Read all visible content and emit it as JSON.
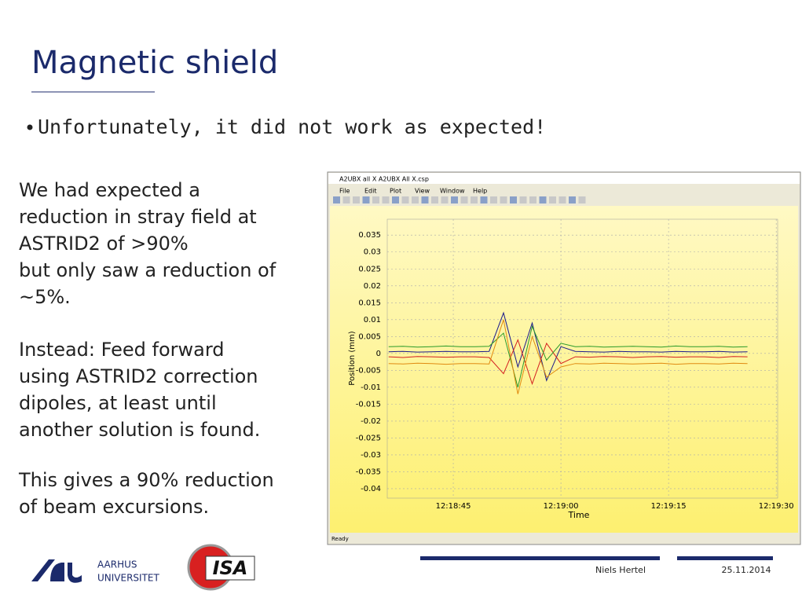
{
  "header": {
    "title": "Magnetic shield"
  },
  "bullets": [
    "Unfortunately, it did not work as expected!"
  ],
  "paragraphs": [
    {
      "lines": [
        "We had expected a",
        "reduction in stray field at",
        "ASTRID2 of >90%",
        "but only saw a reduction of",
        "~5%."
      ]
    },
    {
      "lines": [
        "Instead: Feed forward",
        "using ASTRID2 correction",
        "dipoles, at least until",
        "another solution is found."
      ]
    },
    {
      "lines": [
        "This gives a 90% reduction",
        "of beam excursions."
      ]
    }
  ],
  "window": {
    "title": "A2UBX all X   A2UBX All X.csp",
    "menu": [
      "File",
      "Edit",
      "Plot",
      "View",
      "Window",
      "Help"
    ],
    "status": "Ready"
  },
  "chart_data": {
    "type": "line",
    "xlabel": "Time",
    "ylabel": "Position (mm)",
    "xlim": [
      44315.8,
      44370.2
    ],
    "ylim": [
      -0.0428,
      0.0397
    ],
    "xticks": [
      {
        "value": 44325,
        "label": "12:18:45"
      },
      {
        "value": 44340,
        "label": "12:19:00"
      },
      {
        "value": 44355,
        "label": "12:19:15"
      },
      {
        "value": 44370,
        "label": "12:19:30"
      }
    ],
    "yticks": [
      0.035,
      0.03,
      0.025,
      0.02,
      0.015,
      0.01,
      0.005,
      0,
      -0.005,
      -0.01,
      -0.015,
      -0.02,
      -0.025,
      -0.03,
      -0.035,
      -0.04
    ],
    "grid": true,
    "x": [
      44316,
      44318,
      44320,
      44322,
      44324,
      44326,
      44328,
      44330,
      44332,
      44334,
      44336,
      44338,
      44340,
      44342,
      44344,
      44346,
      44348,
      44350,
      44352,
      44354,
      44356,
      44358,
      44360,
      44362,
      44364,
      44366
    ],
    "series": [
      {
        "color": "#1a1a8c",
        "values": [
          0.0005,
          0.0006,
          0.0004,
          0.0005,
          0.0006,
          0.0005,
          0.0005,
          0.0006,
          0.012,
          -0.004,
          0.009,
          -0.008,
          0.002,
          0.0006,
          0.0005,
          0.0004,
          0.0006,
          0.0005,
          0.0005,
          0.0004,
          0.0006,
          0.0005,
          0.0005,
          0.0006,
          0.0004,
          0.0005
        ]
      },
      {
        "color": "#d42020",
        "values": [
          -0.001,
          -0.0012,
          -0.0009,
          -0.001,
          -0.0011,
          -0.001,
          -0.001,
          -0.0012,
          -0.006,
          0.004,
          -0.009,
          0.003,
          -0.003,
          -0.001,
          -0.0011,
          -0.0009,
          -0.001,
          -0.0012,
          -0.001,
          -0.0009,
          -0.0011,
          -0.001,
          -0.001,
          -0.0012,
          -0.0009,
          -0.001
        ]
      },
      {
        "color": "#2a9a2a",
        "values": [
          0.002,
          0.0021,
          0.0019,
          0.002,
          0.0022,
          0.002,
          0.002,
          0.0021,
          0.006,
          -0.01,
          0.008,
          -0.002,
          0.003,
          0.002,
          0.0021,
          0.0019,
          0.002,
          0.0021,
          0.002,
          0.0019,
          0.0022,
          0.002,
          0.002,
          0.0021,
          0.0019,
          0.002
        ]
      },
      {
        "color": "#e08a10",
        "values": [
          -0.003,
          -0.0031,
          -0.0029,
          -0.003,
          -0.0032,
          -0.003,
          -0.003,
          -0.0031,
          0.01,
          -0.012,
          0.005,
          -0.007,
          -0.004,
          -0.003,
          -0.0031,
          -0.0029,
          -0.003,
          -0.0031,
          -0.003,
          -0.0029,
          -0.0032,
          -0.003,
          -0.003,
          -0.0031,
          -0.0029,
          -0.003
        ]
      }
    ]
  },
  "footer": {
    "university": [
      "AARHUS",
      "UNIVERSITET"
    ],
    "logo_text": "ISA",
    "author": "Niels Hertel",
    "date": "25.11.2014"
  }
}
